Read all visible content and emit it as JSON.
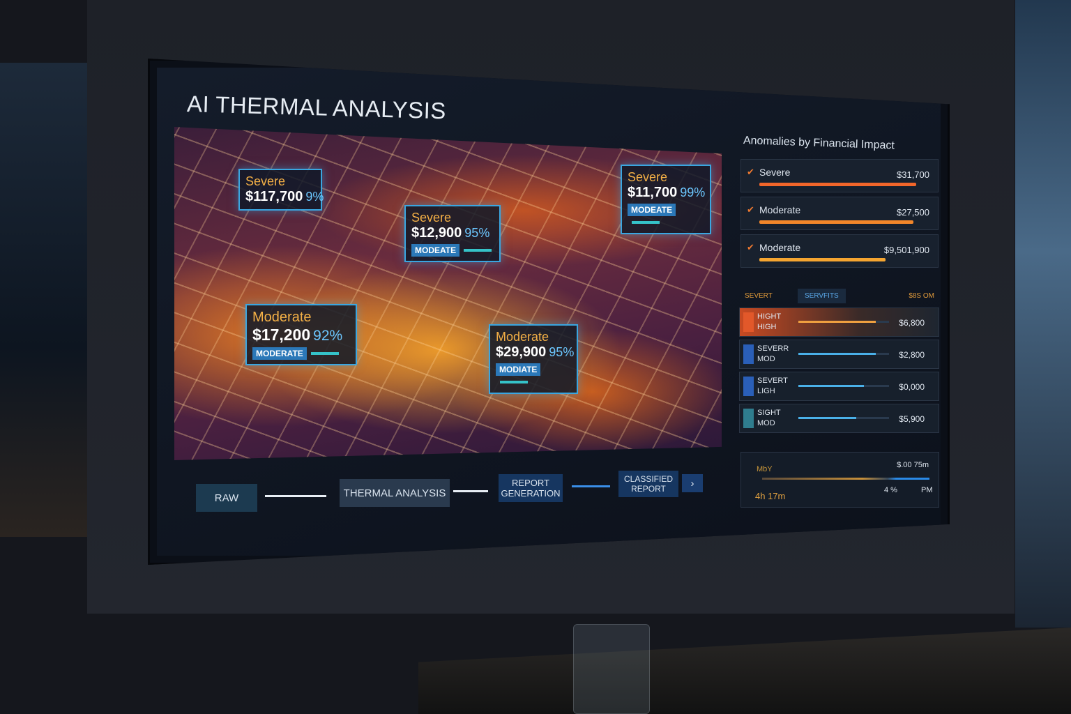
{
  "title": "AI THERMAL ANALYSIS",
  "callouts": [
    {
      "severity": "Severe",
      "amount": "$117,700",
      "confidence": "9%",
      "badge": ""
    },
    {
      "severity": "Severe",
      "amount": "$12,900",
      "confidence": "95%",
      "badge": "MODEATE"
    },
    {
      "severity": "Severe",
      "amount": "$11,700",
      "confidence": "99%",
      "badge": "MODEATE"
    },
    {
      "severity": "Moderate",
      "amount": "$17,200",
      "confidence": "92%",
      "badge": "MODERATE"
    },
    {
      "severity": "Moderate",
      "amount": "$29,900",
      "confidence": "95%",
      "badge": "MODIATE"
    }
  ],
  "pipeline": [
    "RAW",
    "THERMAL ANALYSIS",
    "REPORT GENERATION",
    "CLASSIFIED REPORT"
  ],
  "panel": {
    "title": "Anomalies by Financial Impact",
    "anomalies": [
      {
        "label": "Severe",
        "value": "$31,700",
        "level": 0.92,
        "color": "#f2662a"
      },
      {
        "label": "Moderate",
        "value": "$27,500",
        "level": 0.9,
        "color": "#f2862a"
      },
      {
        "label": "Moderate",
        "value": "$9,501,900",
        "level": 0.74,
        "color": "#f5a530"
      }
    ],
    "table_header": [
      "SEVERT",
      "SERVFITS",
      "$8S OM"
    ],
    "rows": [
      {
        "line1": "HIGHT",
        "line2": "HIGH",
        "value": "$6,800",
        "level": 0.85,
        "color": "#e2582a"
      },
      {
        "line1": "SEVERR",
        "line2": "MOD",
        "value": "$2,800",
        "level": 0.85,
        "color": "#2a5fb8"
      },
      {
        "line1": "SEVERT",
        "line2": "LIGH",
        "value": "$0,000",
        "level": 0.72,
        "color": "#2a5fb8"
      },
      {
        "line1": "SIGHT",
        "line2": "MOD",
        "value": "$5,900",
        "level": 0.64,
        "color": "#2f7d8e"
      }
    ],
    "footer": {
      "label": "MbY",
      "value": "$.00 75m",
      "time": "4h 17m",
      "percent": "4 %",
      "unit": "PM"
    }
  }
}
